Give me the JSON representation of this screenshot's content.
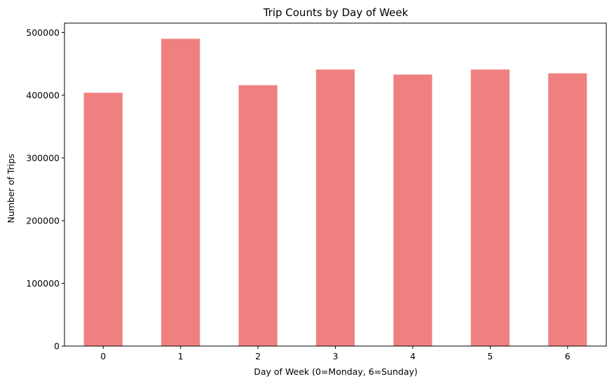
{
  "chart_data": {
    "type": "bar",
    "title": "Trip Counts by Day of Week",
    "xlabel": "Day of Week (0=Monday, 6=Sunday)",
    "ylabel": "Number of Trips",
    "categories": [
      "0",
      "1",
      "2",
      "3",
      "4",
      "5",
      "6"
    ],
    "values": [
      404000,
      490000,
      416000,
      441000,
      433000,
      441000,
      435000
    ],
    "ylim": [
      0,
      515000
    ],
    "yticks": [
      0,
      100000,
      200000,
      300000,
      400000,
      500000
    ],
    "ytick_labels": [
      "0",
      "100000",
      "200000",
      "300000",
      "400000",
      "500000"
    ],
    "bar_color": "#f08080",
    "grid": false,
    "legend": "none"
  }
}
